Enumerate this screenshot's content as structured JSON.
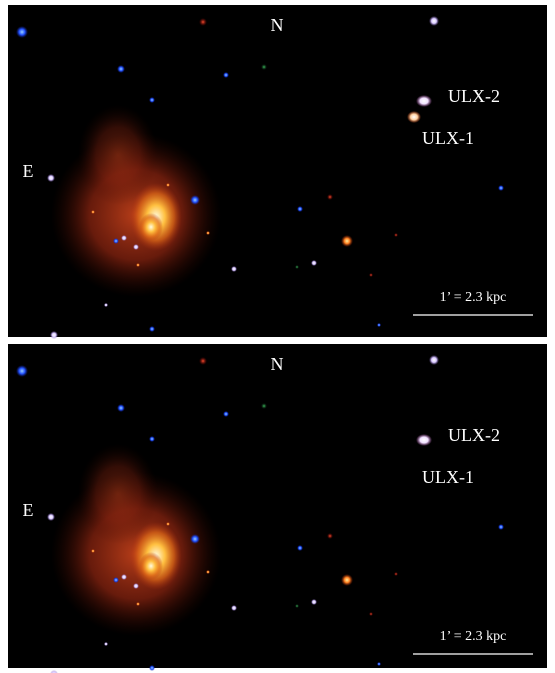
{
  "panels": [
    {
      "north": "N",
      "east": "E",
      "ulx2": "ULX-2",
      "ulx1": "ULX-1",
      "scale": "1’ = 2.3 kpc"
    },
    {
      "north": "N",
      "east": "E",
      "ulx2": "ULX-2",
      "ulx1": "ULX-1",
      "scale": "1’ = 2.3 kpc"
    }
  ]
}
